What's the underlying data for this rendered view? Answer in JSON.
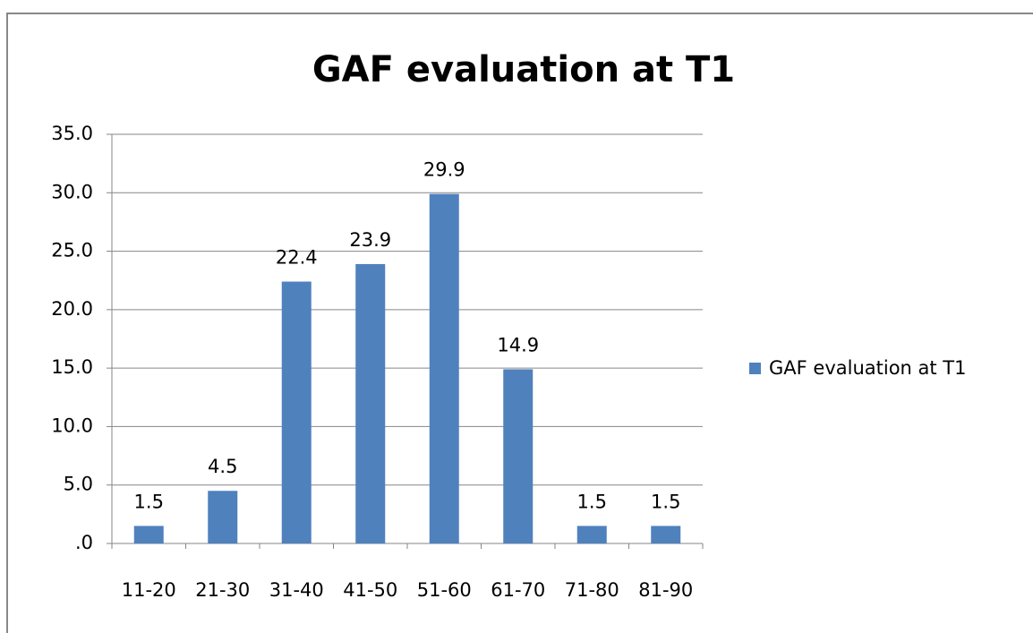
{
  "chart_data": {
    "type": "bar",
    "title": "GAF evaluation at T1",
    "categories": [
      "11-20",
      "21-30",
      "31-40",
      "41-50",
      "51-60",
      "61-70",
      "71-80",
      "81-90"
    ],
    "series": [
      {
        "name": "GAF evaluation at T1",
        "color": "#4f81bd",
        "values": [
          1.5,
          4.5,
          22.4,
          23.9,
          29.9,
          14.9,
          1.5,
          1.5
        ]
      }
    ],
    "ylim": [
      0,
      35
    ],
    "yticks": [
      {
        "value": 0,
        "label": ".0"
      },
      {
        "value": 5,
        "label": "5.0"
      },
      {
        "value": 10,
        "label": "10.0"
      },
      {
        "value": 15,
        "label": "15.0"
      },
      {
        "value": 20,
        "label": "20.0"
      },
      {
        "value": 25,
        "label": "25.0"
      },
      {
        "value": 30,
        "label": "30.0"
      },
      {
        "value": 35,
        "label": "35.0"
      }
    ],
    "grid": true,
    "legend": "right"
  }
}
